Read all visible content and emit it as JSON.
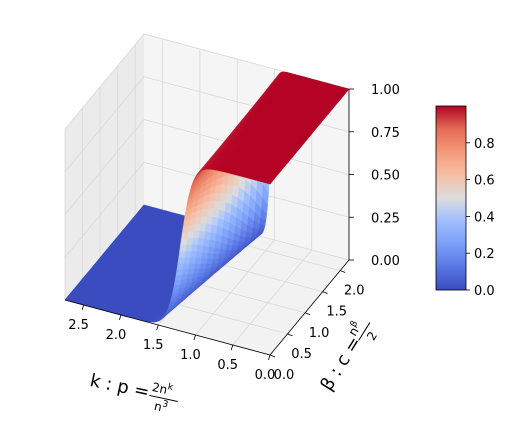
{
  "chart_data": {
    "type": "surface3d",
    "colormap": "coolwarm",
    "x": {
      "label": "k: p = 2n^k / n^3",
      "label_main": "k : p =",
      "label_num": "2n",
      "label_num_sup": "k",
      "label_den": "n",
      "label_den_sup": "3",
      "range": [
        0,
        2.75
      ],
      "ticks": [
        0.0,
        0.5,
        1.0,
        1.5,
        2.0,
        2.5
      ],
      "tick_labels": [
        "0.0",
        "0.5",
        "1.0",
        "1.5",
        "2.0",
        "2.5"
      ]
    },
    "y": {
      "label": "β: c = n^β / 2",
      "label_main": "β : c =",
      "label_num": "n",
      "label_num_sup": "β",
      "label_den": "2",
      "range": [
        0,
        2.25
      ],
      "ticks": [
        0.0,
        0.5,
        1.0,
        1.5,
        2.0
      ],
      "tick_labels": [
        "0.0",
        "0.5",
        "1.0",
        "1.5",
        "2.0"
      ]
    },
    "z": {
      "range": [
        0,
        1
      ],
      "ticks": [
        0.0,
        0.25,
        0.5,
        0.75,
        1.0
      ],
      "tick_labels": [
        "0.00",
        "0.25",
        "0.50",
        "0.75",
        "1.00"
      ]
    },
    "surface": {
      "description_of_shape": "sigmoid step: ~1 for small k, ~0 for large k; transition near k=1.2 at beta=0, sharpening toward k≈1.05 at beta=2.25",
      "transition_k": [
        {
          "beta": 0.0,
          "k": 1.2
        },
        {
          "beta": 2.25,
          "k": 1.05
        }
      ]
    },
    "colorbar": {
      "range": [
        0,
        1
      ],
      "ticks": [
        0.0,
        0.2,
        0.4,
        0.6,
        0.8
      ],
      "tick_labels": [
        "0.0",
        "0.2",
        "0.4",
        "0.6",
        "0.8"
      ]
    },
    "grid": true
  }
}
